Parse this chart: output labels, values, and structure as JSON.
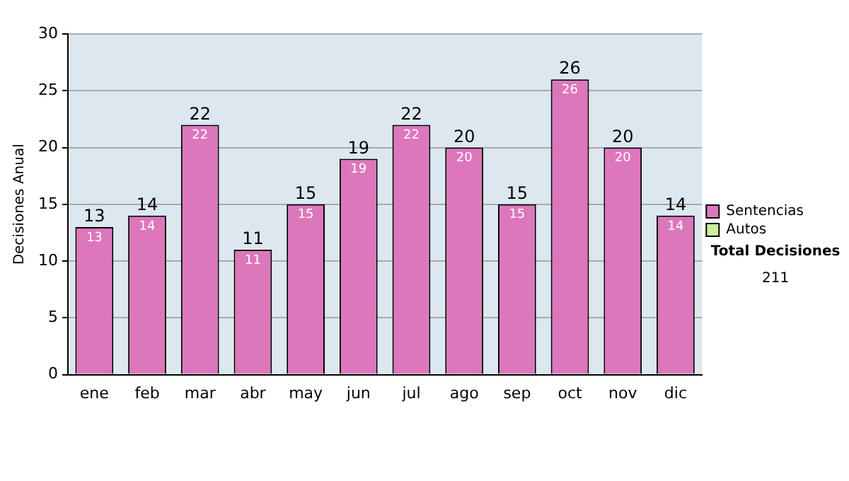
{
  "chart_data": {
    "type": "bar",
    "stacked": true,
    "ylabel": "Decisiones Anual",
    "categories": [
      "ene",
      "feb",
      "mar",
      "abr",
      "may",
      "jun",
      "jul",
      "ago",
      "sep",
      "oct",
      "nov",
      "dic"
    ],
    "series": [
      {
        "name": "Sentencias",
        "color": "#dd77bb",
        "values": [
          13,
          14,
          22,
          11,
          15,
          19,
          22,
          20,
          15,
          26,
          20,
          14
        ],
        "value_labels": [
          "13",
          "14",
          "22",
          "11",
          "15",
          "19",
          "22",
          "20",
          "15",
          "26",
          "20",
          "14"
        ]
      },
      {
        "name": "Autos",
        "color": "#ccee99",
        "values": [
          0,
          0,
          0,
          0,
          0,
          0,
          0,
          0,
          0,
          0,
          0,
          0
        ]
      }
    ],
    "totals": [
      "13",
      "14",
      "22",
      "11",
      "15",
      "19",
      "22",
      "20",
      "15",
      "26",
      "20",
      "14"
    ],
    "ylim": [
      0,
      30
    ],
    "yticks": [
      0,
      5,
      10,
      15,
      20,
      25,
      30
    ],
    "grid": "y",
    "legend": "right",
    "annotations": [
      "Total Decisiones",
      "211"
    ]
  }
}
